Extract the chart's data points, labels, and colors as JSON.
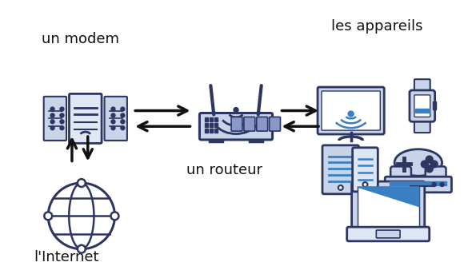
{
  "bg_color": "#ffffff",
  "icon_color": "#2d3561",
  "icon_color_mid": "#8898c8",
  "icon_color_light": "#c8d4e8",
  "icon_color_blue": "#3a7fc1",
  "arrow_color": "#111111",
  "text_color": "#111111",
  "labels": {
    "modem": "un modem",
    "router": "un routeur",
    "internet": "l'Internet",
    "devices": "les appareils"
  },
  "figsize": [
    5.9,
    3.43
  ],
  "dpi": 100
}
